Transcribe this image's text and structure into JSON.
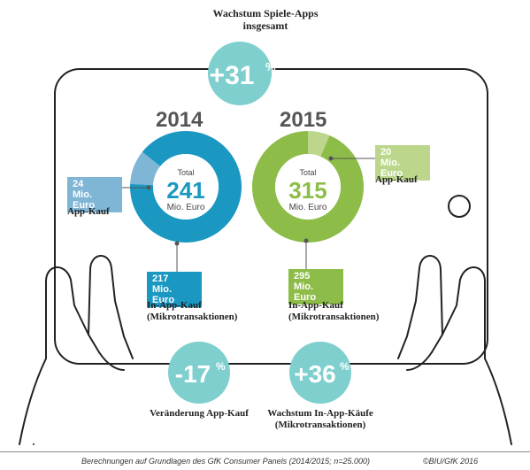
{
  "headline": {
    "line1": "Wachstum Spiele-Apps",
    "line2": "insgesamt",
    "value": "+31",
    "unit": "%"
  },
  "chart_data": [
    {
      "type": "pie",
      "variant": "donut",
      "year": "2014",
      "center_label": "Total",
      "total": 241,
      "total_unit": "Mio. Euro",
      "categories": [
        "App-Kauf",
        "In-App-Kauf (Mikrotransaktionen)"
      ],
      "values": [
        24,
        217
      ],
      "colors": [
        "#7fb5d5",
        "#1a98c2"
      ],
      "value_labels": [
        {
          "value": "24",
          "unit": "Mio. Euro",
          "category": "App-Kauf"
        },
        {
          "value": "217",
          "unit": "Mio. Euro",
          "category": "In-App-Kauf",
          "category2": "(Mikrotransaktionen)"
        }
      ]
    },
    {
      "type": "pie",
      "variant": "donut",
      "year": "2015",
      "center_label": "Total",
      "total": 315,
      "total_unit": "Mio. Euro",
      "categories": [
        "App-Kauf",
        "In-App-Kauf (Mikrotransaktionen)"
      ],
      "values": [
        20,
        295
      ],
      "colors": [
        "#bcd78c",
        "#8dbd48"
      ],
      "value_labels": [
        {
          "value": "20",
          "unit": "Mio. Euro",
          "category": "App-Kauf"
        },
        {
          "value": "295",
          "unit": "Mio. Euro",
          "category": "In-App-Kauf",
          "category2": "(Mikrotransaktionen)"
        }
      ]
    }
  ],
  "changes": [
    {
      "value": "-17",
      "unit": "%",
      "label": "Veränderung App-Kauf",
      "label2": ""
    },
    {
      "value": "+36",
      "unit": "%",
      "label": "Wachstum In-App-Käufe",
      "label2": "(Mikrotransaktionen)"
    }
  ],
  "footer": {
    "source": "Berechnungen auf Grundlagen des GfK Consumer Panels (2014/2015; n=25.000)",
    "copyright": "©BIU/GfK 2016"
  },
  "colors": {
    "bubble": "#7fcfcf",
    "blue_dark": "#1a98c2",
    "blue_light": "#7fb5d5",
    "green_dark": "#8dbd48",
    "green_light": "#bcd78c",
    "outline": "#222222"
  }
}
